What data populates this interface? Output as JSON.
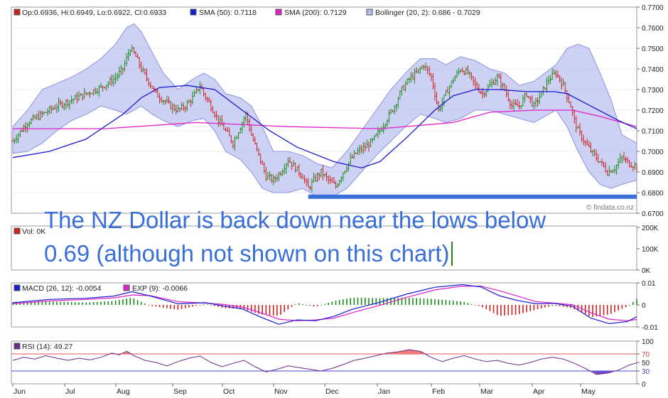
{
  "colors": {
    "up": "#1a8a1a",
    "down": "#cc2222",
    "sma50": "#1a1ad0",
    "sma200": "#e020c8",
    "band": "#b8bdf0",
    "bandEdge": "#8c93e0",
    "support": "#3a6fd8",
    "macd": "#1a1ad0",
    "signal": "#e020c8",
    "rsi": "#6a2a8a",
    "rsiHigh": "#f07a7a",
    "rsiLow": "#6a4ad0",
    "annotation": "#3a6fd8"
  },
  "annotation": {
    "line1": "The NZ Dollar is back down near the lows below",
    "line2": "0.69 (although not shown on this chart)"
  },
  "chart_data": [
    {
      "type": "candlestick",
      "panel": "price",
      "legend": [
        "Op:0.6936, Hi:0.6949, Lo:0.6922, Cl:0.6933",
        "SMA (50): 0.7118",
        "SMA (200): 0.7129",
        "Bollinger (20, 2): 0.686 - 0.7029"
      ],
      "watermark": "© findata.co.nz",
      "ylim": [
        0.67,
        0.77
      ],
      "yticks": [
        "0.6700",
        "0.6800",
        "0.6900",
        "0.7000",
        "0.7100",
        "0.7200",
        "0.7300",
        "0.7400",
        "0.7500",
        "0.7600",
        "0.7700"
      ],
      "xticks": [
        "Jun",
        "Jul",
        "Aug",
        "Sep",
        "Oct",
        "Nov",
        "Dec",
        "Jan",
        "Feb",
        "Mar",
        "Apr",
        "May"
      ],
      "support_level": 0.678,
      "close_path": [
        [
          0,
          0.705
        ],
        [
          8,
          0.714
        ],
        [
          16,
          0.718
        ],
        [
          24,
          0.722
        ],
        [
          32,
          0.725
        ],
        [
          40,
          0.728
        ],
        [
          48,
          0.731
        ],
        [
          55,
          0.735
        ],
        [
          60,
          0.74
        ],
        [
          64,
          0.75
        ],
        [
          67,
          0.746
        ],
        [
          70,
          0.74
        ],
        [
          74,
          0.734
        ],
        [
          78,
          0.728
        ],
        [
          82,
          0.725
        ],
        [
          86,
          0.722
        ],
        [
          90,
          0.72
        ],
        [
          94,
          0.722
        ],
        [
          98,
          0.726
        ],
        [
          102,
          0.732
        ],
        [
          104,
          0.728
        ],
        [
          108,
          0.722
        ],
        [
          112,
          0.715
        ],
        [
          116,
          0.71
        ],
        [
          120,
          0.704
        ],
        [
          124,
          0.712
        ],
        [
          127,
          0.718
        ],
        [
          130,
          0.708
        ],
        [
          134,
          0.698
        ],
        [
          138,
          0.688
        ],
        [
          142,
          0.686
        ],
        [
          146,
          0.69
        ],
        [
          150,
          0.696
        ],
        [
          154,
          0.692
        ],
        [
          158,
          0.688
        ],
        [
          161,
          0.682
        ],
        [
          164,
          0.686
        ],
        [
          168,
          0.69
        ],
        [
          172,
          0.686
        ],
        [
          176,
          0.683
        ],
        [
          180,
          0.69
        ],
        [
          184,
          0.696
        ],
        [
          188,
          0.7
        ],
        [
          192,
          0.702
        ],
        [
          196,
          0.705
        ],
        [
          200,
          0.71
        ],
        [
          204,
          0.716
        ],
        [
          208,
          0.722
        ],
        [
          212,
          0.73
        ],
        [
          216,
          0.735
        ],
        [
          220,
          0.738
        ],
        [
          224,
          0.742
        ],
        [
          228,
          0.736
        ],
        [
          232,
          0.72
        ],
        [
          236,
          0.728
        ],
        [
          240,
          0.735
        ],
        [
          244,
          0.74
        ],
        [
          248,
          0.738
        ],
        [
          252,
          0.732
        ],
        [
          256,
          0.728
        ],
        [
          260,
          0.732
        ],
        [
          264,
          0.736
        ],
        [
          268,
          0.73
        ],
        [
          272,
          0.722
        ],
        [
          276,
          0.722
        ],
        [
          280,
          0.728
        ],
        [
          284,
          0.722
        ],
        [
          288,
          0.728
        ],
        [
          292,
          0.735
        ],
        [
          296,
          0.738
        ],
        [
          300,
          0.732
        ],
        [
          304,
          0.722
        ],
        [
          306,
          0.715
        ],
        [
          308,
          0.71
        ],
        [
          312,
          0.704
        ],
        [
          316,
          0.699
        ],
        [
          320,
          0.695
        ],
        [
          324,
          0.69
        ],
        [
          328,
          0.692
        ],
        [
          332,
          0.697
        ],
        [
          336,
          0.694
        ],
        [
          340,
          0.693
        ]
      ],
      "sma50": [
        [
          0,
          0.697
        ],
        [
          20,
          0.7
        ],
        [
          40,
          0.706
        ],
        [
          60,
          0.718
        ],
        [
          70,
          0.726
        ],
        [
          80,
          0.731
        ],
        [
          95,
          0.732
        ],
        [
          110,
          0.73
        ],
        [
          125,
          0.72
        ],
        [
          140,
          0.71
        ],
        [
          155,
          0.702
        ],
        [
          175,
          0.695
        ],
        [
          190,
          0.692
        ],
        [
          200,
          0.695
        ],
        [
          215,
          0.707
        ],
        [
          230,
          0.72
        ],
        [
          240,
          0.727
        ],
        [
          252,
          0.73
        ],
        [
          265,
          0.73
        ],
        [
          280,
          0.729
        ],
        [
          295,
          0.729
        ],
        [
          302,
          0.728
        ],
        [
          315,
          0.722
        ],
        [
          330,
          0.715
        ],
        [
          340,
          0.711
        ]
      ],
      "sma200": [
        [
          0,
          0.711
        ],
        [
          50,
          0.711
        ],
        [
          100,
          0.714
        ],
        [
          150,
          0.712
        ],
        [
          200,
          0.711
        ],
        [
          240,
          0.714
        ],
        [
          260,
          0.719
        ],
        [
          285,
          0.72
        ],
        [
          305,
          0.72
        ],
        [
          320,
          0.717
        ],
        [
          340,
          0.712
        ]
      ],
      "bollinger_upper": [
        [
          0,
          0.712
        ],
        [
          8,
          0.72
        ],
        [
          16,
          0.73
        ],
        [
          24,
          0.733
        ],
        [
          32,
          0.736
        ],
        [
          40,
          0.74
        ],
        [
          48,
          0.745
        ],
        [
          56,
          0.752
        ],
        [
          62,
          0.76
        ],
        [
          66,
          0.762
        ],
        [
          70,
          0.758
        ],
        [
          76,
          0.748
        ],
        [
          82,
          0.738
        ],
        [
          90,
          0.73
        ],
        [
          98,
          0.735
        ],
        [
          104,
          0.738
        ],
        [
          110,
          0.735
        ],
        [
          116,
          0.728
        ],
        [
          124,
          0.726
        ],
        [
          130,
          0.722
        ],
        [
          136,
          0.712
        ],
        [
          142,
          0.7
        ],
        [
          150,
          0.7
        ],
        [
          158,
          0.698
        ],
        [
          166,
          0.694
        ],
        [
          174,
          0.692
        ],
        [
          182,
          0.7
        ],
        [
          190,
          0.71
        ],
        [
          198,
          0.72
        ],
        [
          206,
          0.73
        ],
        [
          214,
          0.738
        ],
        [
          222,
          0.745
        ],
        [
          230,
          0.745
        ],
        [
          236,
          0.742
        ],
        [
          244,
          0.746
        ],
        [
          252,
          0.744
        ],
        [
          260,
          0.74
        ],
        [
          268,
          0.738
        ],
        [
          276,
          0.732
        ],
        [
          284,
          0.734
        ],
        [
          290,
          0.738
        ],
        [
          296,
          0.742
        ],
        [
          302,
          0.75
        ],
        [
          308,
          0.752
        ],
        [
          314,
          0.75
        ],
        [
          320,
          0.738
        ],
        [
          326,
          0.725
        ],
        [
          332,
          0.708
        ],
        [
          340,
          0.704
        ]
      ],
      "bollinger_lower": [
        [
          0,
          0.699
        ],
        [
          8,
          0.7
        ],
        [
          16,
          0.704
        ],
        [
          24,
          0.71
        ],
        [
          32,
          0.715
        ],
        [
          40,
          0.718
        ],
        [
          48,
          0.722
        ],
        [
          56,
          0.72
        ],
        [
          62,
          0.718
        ],
        [
          66,
          0.72
        ],
        [
          70,
          0.722
        ],
        [
          76,
          0.718
        ],
        [
          82,
          0.715
        ],
        [
          90,
          0.712
        ],
        [
          98,
          0.715
        ],
        [
          104,
          0.716
        ],
        [
          110,
          0.71
        ],
        [
          116,
          0.7
        ],
        [
          124,
          0.696
        ],
        [
          130,
          0.69
        ],
        [
          136,
          0.682
        ],
        [
          142,
          0.68
        ],
        [
          150,
          0.68
        ],
        [
          158,
          0.682
        ],
        [
          166,
          0.678
        ],
        [
          174,
          0.678
        ],
        [
          182,
          0.682
        ],
        [
          190,
          0.69
        ],
        [
          198,
          0.698
        ],
        [
          206,
          0.705
        ],
        [
          214,
          0.712
        ],
        [
          222,
          0.718
        ],
        [
          230,
          0.716
        ],
        [
          236,
          0.714
        ],
        [
          244,
          0.716
        ],
        [
          252,
          0.72
        ],
        [
          260,
          0.72
        ],
        [
          268,
          0.718
        ],
        [
          276,
          0.716
        ],
        [
          284,
          0.714
        ],
        [
          290,
          0.717
        ],
        [
          296,
          0.72
        ],
        [
          302,
          0.712
        ],
        [
          308,
          0.7
        ],
        [
          314,
          0.69
        ],
        [
          320,
          0.684
        ],
        [
          326,
          0.682
        ],
        [
          332,
          0.684
        ],
        [
          340,
          0.686
        ]
      ]
    },
    {
      "type": "bar",
      "panel": "volume",
      "legend": [
        "Vol: 0K"
      ],
      "yticks": [
        "0K",
        "100K",
        "200K"
      ]
    },
    {
      "type": "line",
      "panel": "macd",
      "legend": [
        "MACD (26, 12): -0.0054",
        "EXP (9): -0.0066"
      ],
      "ylim": [
        -0.01,
        0.01
      ],
      "yticks": [
        "-0.01",
        "0",
        "0.01"
      ],
      "macd": [
        [
          0,
          0.001
        ],
        [
          20,
          0.0025
        ],
        [
          40,
          0.003
        ],
        [
          55,
          0.004
        ],
        [
          65,
          0.006
        ],
        [
          75,
          0.004
        ],
        [
          90,
          0.0005
        ],
        [
          105,
          0.001
        ],
        [
          115,
          -0.0005
        ],
        [
          125,
          -0.0018
        ],
        [
          135,
          -0.0055
        ],
        [
          145,
          -0.0088
        ],
        [
          155,
          -0.0068
        ],
        [
          165,
          -0.0072
        ],
        [
          175,
          -0.0052
        ],
        [
          185,
          -0.002
        ],
        [
          200,
          0.0012
        ],
        [
          215,
          0.005
        ],
        [
          230,
          0.008
        ],
        [
          245,
          0.0092
        ],
        [
          255,
          0.0082
        ],
        [
          265,
          0.0042
        ],
        [
          275,
          0.002
        ],
        [
          285,
          0.0005
        ],
        [
          295,
          0.0007
        ],
        [
          305,
          -0.0006
        ],
        [
          315,
          -0.006
        ],
        [
          325,
          -0.0085
        ],
        [
          335,
          -0.0075
        ],
        [
          340,
          -0.0054
        ]
      ],
      "signal": [
        [
          0,
          0.0005
        ],
        [
          20,
          0.0018
        ],
        [
          40,
          0.0025
        ],
        [
          55,
          0.0032
        ],
        [
          65,
          0.0045
        ],
        [
          75,
          0.0042
        ],
        [
          90,
          0.0015
        ],
        [
          105,
          0.0008
        ],
        [
          115,
          0.0002
        ],
        [
          125,
          -0.001
        ],
        [
          135,
          -0.0035
        ],
        [
          145,
          -0.0065
        ],
        [
          155,
          -0.0072
        ],
        [
          165,
          -0.0068
        ],
        [
          175,
          -0.006
        ],
        [
          185,
          -0.0035
        ],
        [
          200,
          -0.0002
        ],
        [
          215,
          0.0035
        ],
        [
          230,
          0.0068
        ],
        [
          245,
          0.0085
        ],
        [
          255,
          0.0085
        ],
        [
          265,
          0.0065
        ],
        [
          275,
          0.004
        ],
        [
          285,
          0.0015
        ],
        [
          295,
          0.0008
        ],
        [
          305,
          0.0001
        ],
        [
          315,
          -0.0035
        ],
        [
          325,
          -0.0065
        ],
        [
          335,
          -0.0072
        ],
        [
          340,
          -0.0066
        ]
      ]
    },
    {
      "type": "line",
      "panel": "rsi",
      "legend": [
        "RSI (14): 49.27"
      ],
      "ylim": [
        0,
        100
      ],
      "yticks": [
        "0",
        "30",
        "50",
        "70",
        "100"
      ],
      "levels": [
        30,
        70
      ],
      "rsi": [
        [
          0,
          55
        ],
        [
          6,
          62
        ],
        [
          12,
          58
        ],
        [
          18,
          66
        ],
        [
          24,
          60
        ],
        [
          30,
          55
        ],
        [
          36,
          60
        ],
        [
          42,
          56
        ],
        [
          48,
          62
        ],
        [
          54,
          72
        ],
        [
          58,
          68
        ],
        [
          62,
          76
        ],
        [
          66,
          66
        ],
        [
          72,
          55
        ],
        [
          78,
          50
        ],
        [
          84,
          42
        ],
        [
          90,
          52
        ],
        [
          96,
          60
        ],
        [
          102,
          65
        ],
        [
          108,
          50
        ],
        [
          114,
          40
        ],
        [
          120,
          48
        ],
        [
          126,
          55
        ],
        [
          132,
          40
        ],
        [
          138,
          28
        ],
        [
          144,
          34
        ],
        [
          150,
          42
        ],
        [
          156,
          38
        ],
        [
          162,
          34
        ],
        [
          168,
          30
        ],
        [
          174,
          36
        ],
        [
          180,
          45
        ],
        [
          186,
          55
        ],
        [
          192,
          60
        ],
        [
          198,
          66
        ],
        [
          204,
          72
        ],
        [
          210,
          75
        ],
        [
          216,
          80
        ],
        [
          222,
          76
        ],
        [
          228,
          62
        ],
        [
          234,
          52
        ],
        [
          240,
          60
        ],
        [
          246,
          66
        ],
        [
          252,
          58
        ],
        [
          258,
          52
        ],
        [
          264,
          55
        ],
        [
          270,
          48
        ],
        [
          276,
          44
        ],
        [
          282,
          50
        ],
        [
          288,
          58
        ],
        [
          294,
          62
        ],
        [
          300,
          58
        ],
        [
          306,
          48
        ],
        [
          312,
          36
        ],
        [
          318,
          22
        ],
        [
          324,
          25
        ],
        [
          330,
          32
        ],
        [
          336,
          44
        ],
        [
          340,
          49
        ]
      ]
    }
  ]
}
